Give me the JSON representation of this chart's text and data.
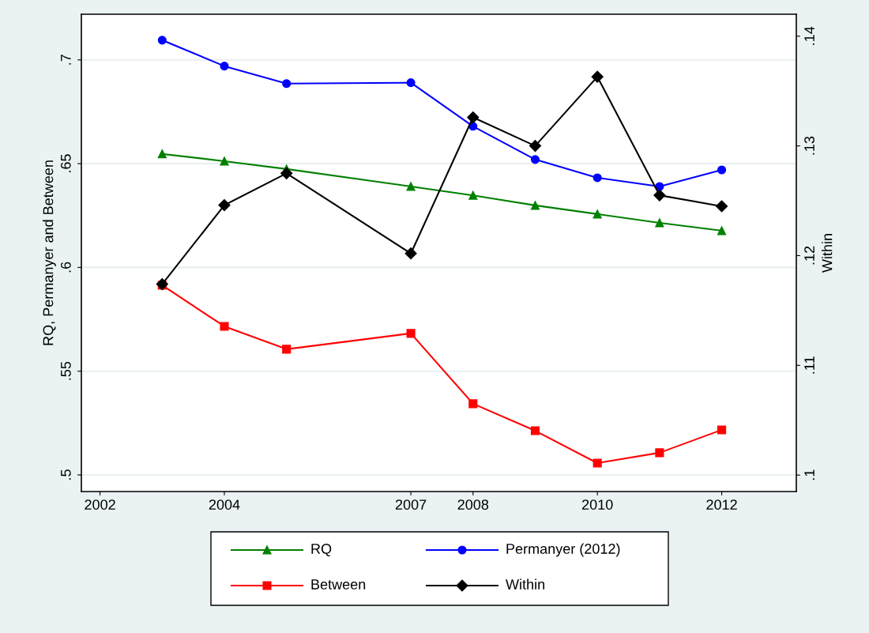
{
  "chart_data": {
    "type": "line",
    "ylabel": "RQ, Permanyer and Between",
    "y2label": "Within",
    "x": [
      2003,
      2004,
      2005,
      2007,
      2008,
      2009,
      2010,
      2011,
      2012
    ],
    "xlim": [
      2001.7,
      2013.2
    ],
    "xticks": [
      2002,
      2004,
      2007,
      2008,
      2010,
      2012
    ],
    "ylim": [
      0.492,
      0.722
    ],
    "yticks": [
      {
        "value": 0.5,
        "label": ".5"
      },
      {
        "value": 0.55,
        "label": ".55"
      },
      {
        "value": 0.6,
        "label": ".6"
      },
      {
        "value": 0.65,
        "label": ".65"
      },
      {
        "value": 0.7,
        "label": ".7"
      }
    ],
    "y2lim": [
      0.0985,
      0.142
    ],
    "y2ticks": [
      {
        "value": 0.1,
        "label": ".1"
      },
      {
        "value": 0.11,
        "label": ".11"
      },
      {
        "value": 0.12,
        "label": ".12"
      },
      {
        "value": 0.13,
        "label": ".13"
      },
      {
        "value": 0.14,
        "label": ".14"
      }
    ],
    "grid": "y",
    "legend": "bottom",
    "series": [
      {
        "name": "RQ",
        "color": "#008000",
        "marker": "triangle",
        "values": [
          0.6547,
          0.6512,
          0.6474,
          0.639,
          0.6347,
          0.6299,
          0.6257,
          0.6215,
          0.6177
        ]
      },
      {
        "name": "Permanyer (2012)",
        "color": "#0000ff",
        "marker": "circle",
        "values": [
          0.7095,
          0.697,
          0.6886,
          0.689,
          0.668,
          0.652,
          0.6432,
          0.639,
          0.647
        ]
      },
      {
        "name": "Between",
        "color": "#ff0000",
        "marker": "square",
        "values": [
          0.5914,
          0.5716,
          0.5606,
          0.5682,
          0.5343,
          0.5213,
          0.5057,
          0.5107,
          0.5217
        ]
      },
      {
        "name": "Within",
        "color": "#000000",
        "marker": "diamond",
        "axis": "y2",
        "values": [
          0.1174,
          0.1246,
          0.1275,
          0.1202,
          0.1326,
          0.13,
          0.1363,
          0.1255,
          0.1245
        ]
      }
    ]
  }
}
